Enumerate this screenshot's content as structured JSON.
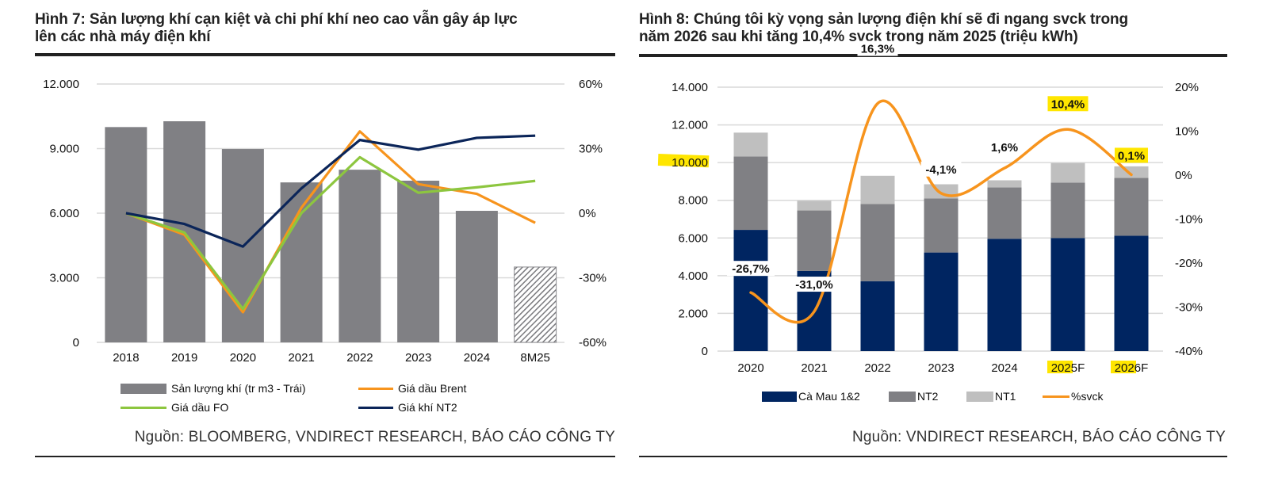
{
  "figure7": {
    "title_line1": "Hình 7: Sản lượng khí cạn kiệt và chi phí khí neo cao vẫn gây áp lực",
    "title_line2": "lên các nhà máy điện khí",
    "source": "Nguồn: BLOOMBERG, VNDIRECT RESEARCH, BÁO CÁO CÔNG TY",
    "legend": [
      {
        "label": "Sản lượng khí (tr m3 - Trái)",
        "kind": "bar",
        "color": "#808084"
      },
      {
        "label": "Giá dầu Brent",
        "kind": "line",
        "color": "#f7941d"
      },
      {
        "label": "Giá dầu FO",
        "kind": "line",
        "color": "#8dc63f"
      },
      {
        "label": "Giá khí NT2",
        "kind": "line",
        "color": "#0b2559"
      }
    ]
  },
  "figure8": {
    "title_line1": "Hình 8:  Chúng tôi kỳ vọng sản lượng điện khí sẽ đi ngang svck trong",
    "title_line2": "năm 2026 sau khi tăng 10,4% svck trong năm 2025 (triệu kWh)",
    "source": "Nguồn: VNDIRECT RESEARCH, BÁO CÁO CÔNG TY",
    "legend": [
      {
        "label": "Cà Mau 1&2",
        "kind": "bar",
        "color": "#002561"
      },
      {
        "label": "NT2",
        "kind": "bar",
        "color": "#808084"
      },
      {
        "label": "NT1",
        "kind": "bar",
        "color": "#bfbfbf"
      },
      {
        "label": "%svck",
        "kind": "line",
        "color": "#f7941d"
      }
    ]
  },
  "chart_data": [
    {
      "type": "bar",
      "title": "Hình 7: Sản lượng khí cạn kiệt và chi phí khí neo cao vẫn gây áp lực lên các nhà máy điện khí",
      "categories": [
        "2018",
        "2019",
        "2020",
        "2021",
        "2022",
        "2023",
        "2024",
        "8M25"
      ],
      "y_left": {
        "ticks": [
          "0",
          "3.000",
          "6.000",
          "9.000",
          "12.000"
        ],
        "range": [
          0,
          12000
        ]
      },
      "y_right": {
        "ticks": [
          "-60%",
          "-30%",
          "0%",
          "30%",
          "60%"
        ],
        "range": [
          -60,
          60
        ]
      },
      "grid": true,
      "legend_position": "bottom",
      "bars": {
        "name": "Sản lượng khí (tr m3 - Trái)",
        "axis": "left",
        "values": [
          10000,
          10270,
          8980,
          7430,
          8020,
          7510,
          6110,
          3500
        ],
        "hatched_last": true,
        "color": "#808084"
      },
      "series": [
        {
          "name": "Giá dầu Brent",
          "axis": "right",
          "color": "#f7941d",
          "values": [
            0,
            -10,
            -46,
            2.5,
            38,
            13.5,
            9,
            -4.5
          ]
        },
        {
          "name": "Giá dầu FO",
          "axis": "right",
          "color": "#8dc63f",
          "values": [
            0,
            -9,
            -44.5,
            0,
            26,
            9.5,
            12,
            15
          ]
        },
        {
          "name": "Giá khí NT2",
          "axis": "right",
          "color": "#0b2559",
          "values": [
            0,
            -5,
            -15.5,
            11.5,
            34,
            29.5,
            35,
            36
          ]
        }
      ]
    },
    {
      "type": "bar",
      "stacked": true,
      "title": "Hình 8: Chúng tôi kỳ vọng sản lượng điện khí sẽ đi ngang svck trong năm 2026 sau khi tăng 10,4% svck trong năm 2025 (triệu kWh)",
      "categories": [
        "2020",
        "2021",
        "2022",
        "2023",
        "2024",
        "2025F",
        "2026F"
      ],
      "highlighted_categories": [
        "2025F",
        "2026F"
      ],
      "y_left": {
        "ticks": [
          "0",
          "2.000",
          "4.000",
          "6.000",
          "8.000",
          "10.000",
          "12.000",
          "14.000"
        ],
        "range": [
          0,
          14000
        ],
        "highlighted_tick": "10.000"
      },
      "y_right": {
        "ticks": [
          "-40%",
          "-30%",
          "-20%",
          "-10%",
          "0%",
          "10%",
          "20%"
        ],
        "range": [
          -40,
          20
        ]
      },
      "grid": true,
      "legend_position": "bottom",
      "series": [
        {
          "name": "Cà Mau 1&2",
          "color": "#002561",
          "values": [
            6430,
            4250,
            3710,
            5230,
            5960,
            6000,
            6120
          ]
        },
        {
          "name": "NT2",
          "color": "#808084",
          "values": [
            3890,
            3210,
            4090,
            2865,
            2720,
            2940,
            3065
          ]
        },
        {
          "name": "NT1",
          "color": "#bfbfbf",
          "values": [
            1270,
            510,
            1500,
            755,
            380,
            1035,
            615
          ]
        }
      ],
      "line": {
        "name": "%svck",
        "axis": "right",
        "color": "#f7941d",
        "smooth": true,
        "values": [
          -26.7,
          -31.0,
          16.3,
          -4.1,
          1.6,
          10.4,
          0.1
        ],
        "labels": [
          "-26,7%",
          "-31,0%",
          "16,3%",
          "-4,1%",
          "1,6%",
          "10,4%",
          "0,1%"
        ],
        "highlighted_labels": [
          "10,4%",
          "0,1%"
        ]
      }
    }
  ]
}
